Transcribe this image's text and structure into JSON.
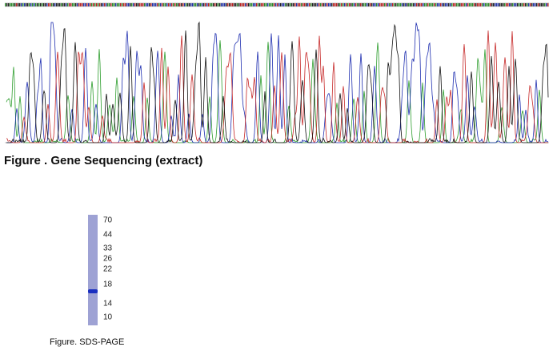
{
  "gene_figure": {
    "caption": "Figure . Gene Sequencing (extract)"
  },
  "sds_figure": {
    "markers": [
      "70",
      "44",
      "33",
      "26",
      "22",
      "18",
      "14",
      "10"
    ],
    "caption": "Figure. SDS-PAGE"
  }
}
